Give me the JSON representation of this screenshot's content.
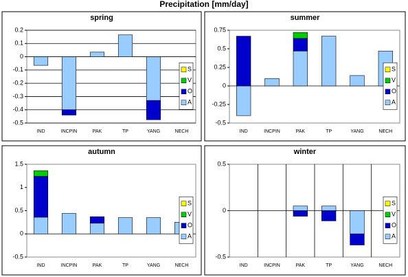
{
  "title": "Precipitation [mm/day]",
  "chart_data": [
    {
      "type": "bar",
      "stacked": true,
      "title": "spring",
      "categories": [
        "IND",
        "INCPIN",
        "PAK",
        "TP",
        "YANG",
        "NECH"
      ],
      "series": [
        {
          "name": "A",
          "color": "#99ccff",
          "values": [
            -0.065,
            -0.4,
            0.035,
            0.165,
            -0.33,
            0
          ]
        },
        {
          "name": "O",
          "color": "#0000cc",
          "values": [
            0,
            -0.04,
            0,
            0,
            -0.145,
            0
          ]
        },
        {
          "name": "V",
          "color": "#00cc00",
          "values": [
            0,
            0,
            0,
            0,
            0,
            0
          ]
        },
        {
          "name": "S",
          "color": "#ffff00",
          "values": [
            0,
            0,
            0,
            0,
            0,
            0
          ]
        }
      ],
      "ylim": [
        -0.5,
        0.2
      ],
      "yticks": [
        -0.5,
        -0.4,
        -0.3,
        -0.2,
        -0.1,
        0,
        0.1,
        0.2
      ],
      "grid": true,
      "category_lines": false
    },
    {
      "type": "bar",
      "stacked": true,
      "title": "summer",
      "categories": [
        "IND",
        "INCPIN",
        "PAK",
        "TP",
        "YANG",
        "NECH"
      ],
      "series": [
        {
          "name": "A",
          "color": "#99ccff",
          "values": [
            -0.4,
            0.1,
            0.47,
            0.67,
            0.14,
            0.47
          ]
        },
        {
          "name": "O",
          "color": "#0000cc",
          "values": [
            0.67,
            0,
            0.17,
            0,
            0,
            0
          ]
        },
        {
          "name": "V",
          "color": "#00cc00",
          "values": [
            0,
            0,
            0.08,
            0,
            0,
            0
          ]
        },
        {
          "name": "S",
          "color": "#ffff00",
          "values": [
            0,
            0,
            0,
            0,
            0,
            0
          ]
        }
      ],
      "ylim": [
        -0.5,
        0.75
      ],
      "yticks": [
        -0.5,
        -0.25,
        0,
        0.25,
        0.5,
        0.75
      ],
      "grid": false,
      "category_lines": false
    },
    {
      "type": "bar",
      "stacked": true,
      "title": "autumn",
      "categories": [
        "IND",
        "INCPIN",
        "PAK",
        "TP",
        "YANG",
        "NECH"
      ],
      "series": [
        {
          "name": "A",
          "color": "#99ccff",
          "values": [
            0.36,
            0.44,
            0.23,
            0.35,
            0.35,
            0.25
          ]
        },
        {
          "name": "O",
          "color": "#0000cc",
          "values": [
            0.88,
            0,
            0.14,
            0,
            0,
            0
          ]
        },
        {
          "name": "V",
          "color": "#00cc00",
          "values": [
            0.12,
            0,
            0,
            0,
            0,
            0
          ]
        },
        {
          "name": "S",
          "color": "#ffff00",
          "values": [
            0,
            0,
            0,
            0,
            0,
            0
          ]
        }
      ],
      "ylim": [
        -0.5,
        1.5
      ],
      "yticks": [
        -0.5,
        0,
        0.5,
        1,
        1.5
      ],
      "grid": false,
      "category_lines": false
    },
    {
      "type": "bar",
      "stacked": true,
      "title": "winter",
      "categories": [
        "IND",
        "INCPIN",
        "PAK",
        "TP",
        "YANG",
        "NECH"
      ],
      "series": [
        {
          "name": "A",
          "color": "#99ccff",
          "values": [
            0,
            0,
            0.05,
            0.05,
            -0.25,
            0
          ]
        },
        {
          "name": "O",
          "color": "#0000cc",
          "values": [
            0,
            0,
            -0.06,
            -0.11,
            -0.12,
            0
          ]
        },
        {
          "name": "V",
          "color": "#00cc00",
          "values": [
            0,
            0,
            0,
            0,
            0,
            0
          ]
        },
        {
          "name": "S",
          "color": "#ffff00",
          "values": [
            0,
            0,
            0,
            0,
            0,
            0
          ]
        }
      ],
      "ylim": [
        -0.5,
        0.5
      ],
      "yticks": [
        -0.5,
        0,
        0.5
      ],
      "grid": false,
      "category_lines": true
    }
  ]
}
